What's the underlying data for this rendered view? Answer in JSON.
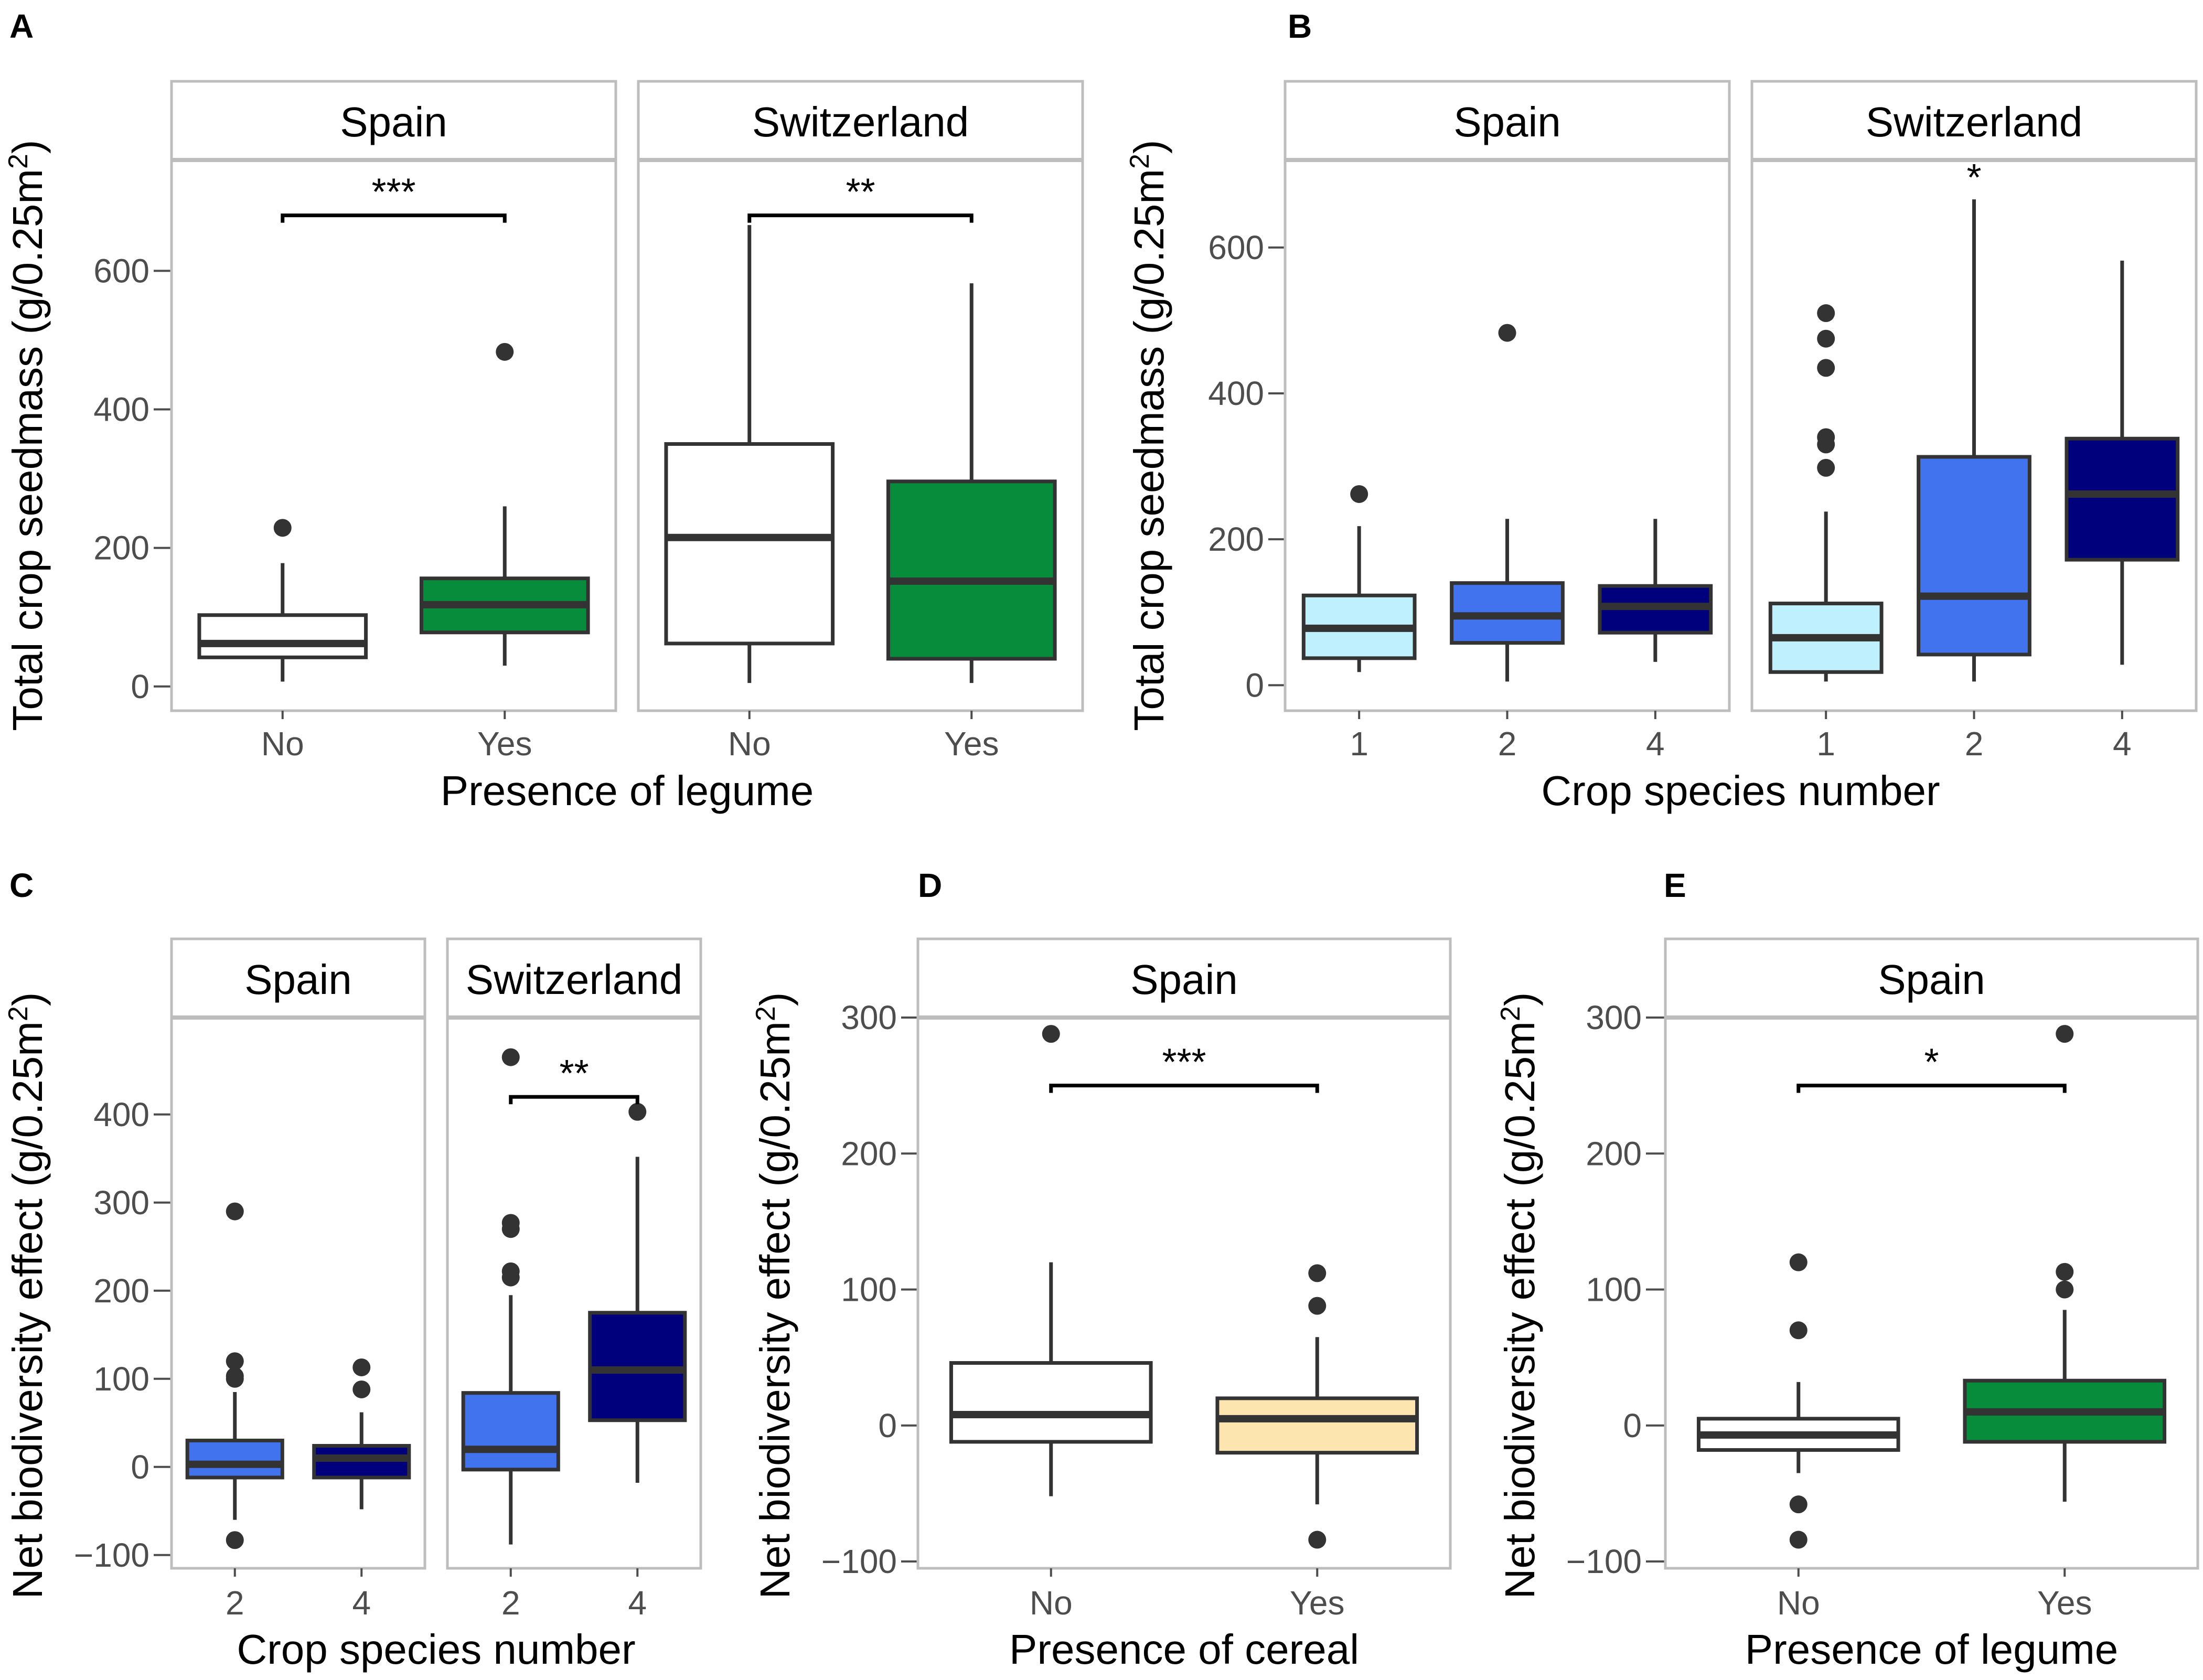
{
  "figure": {
    "background": "#ffffff",
    "colors": {
      "box_stroke": "#333333",
      "panel_border": "#bdbdbd",
      "strip_fill": "#ffffff",
      "tick_color": "#4d4d4d",
      "none": "#ffffff",
      "legume": "#078c3c",
      "cereal": "#fde5b0",
      "one_species": "#bff0fd",
      "two_species": "#4273ee",
      "four_species": "#00007c"
    }
  },
  "chart_data": [
    {
      "id": "A",
      "type": "boxplot",
      "panel_label": "A",
      "xlabel": "Presence of legume",
      "ylabel": "Total crop seedmass (g/0.25m",
      "ylabel_sup": "2",
      "ylabel_end": ")",
      "ylim": [
        -35,
        760
      ],
      "yticks": [
        0,
        200,
        400,
        600
      ],
      "facets": [
        {
          "title": "Spain",
          "categories": [
            "No",
            "Yes"
          ],
          "boxes": [
            {
              "category": "No",
              "fill": "#ffffff",
              "q1": 42,
              "median": 62,
              "q3": 103,
              "whisker_low": 7,
              "whisker_high": 178,
              "outliers": [
                229
              ]
            },
            {
              "category": "Yes",
              "fill": "#078c3c",
              "q1": 78,
              "median": 118,
              "q3": 156,
              "whisker_low": 30,
              "whisker_high": 260,
              "outliers": [
                483
              ]
            }
          ],
          "significance": [
            {
              "label": "***",
              "from": "No",
              "to": "Yes",
              "y": 680
            }
          ]
        },
        {
          "title": "Switzerland",
          "categories": [
            "No",
            "Yes"
          ],
          "boxes": [
            {
              "category": "No",
              "fill": "#ffffff",
              "q1": 62,
              "median": 215,
              "q3": 350,
              "whisker_low": 5,
              "whisker_high": 666,
              "outliers": []
            },
            {
              "category": "Yes",
              "fill": "#078c3c",
              "q1": 40,
              "median": 152,
              "q3": 296,
              "whisker_low": 5,
              "whisker_high": 582,
              "outliers": []
            }
          ],
          "significance": [
            {
              "label": "**",
              "from": "No",
              "to": "Yes",
              "y": 680
            }
          ]
        }
      ]
    },
    {
      "id": "B",
      "type": "boxplot",
      "panel_label": "B",
      "xlabel": "Crop species number",
      "ylabel": "Total crop seedmass (g/0.25m",
      "ylabel_sup": "2",
      "ylabel_end": ")",
      "ylim": [
        -35,
        720
      ],
      "yticks": [
        0,
        200,
        400,
        600
      ],
      "facets": [
        {
          "title": "Spain",
          "categories": [
            "1",
            "2",
            "4"
          ],
          "boxes": [
            {
              "category": "1",
              "fill": "#bff0fd",
              "q1": 37,
              "median": 78,
              "q3": 123,
              "whisker_low": 18,
              "whisker_high": 218,
              "outliers": [
                262
              ]
            },
            {
              "category": "2",
              "fill": "#4273ee",
              "q1": 58,
              "median": 95,
              "q3": 140,
              "whisker_low": 5,
              "whisker_high": 228,
              "outliers": [
                483
              ]
            },
            {
              "category": "4",
              "fill": "#00007c",
              "q1": 72,
              "median": 108,
              "q3": 136,
              "whisker_low": 32,
              "whisker_high": 228,
              "outliers": []
            }
          ],
          "significance": []
        },
        {
          "title": "Switzerland",
          "categories": [
            "1",
            "2",
            "4"
          ],
          "boxes": [
            {
              "category": "1",
              "fill": "#bff0fd",
              "q1": 18,
              "median": 65,
              "q3": 112,
              "whisker_low": 5,
              "whisker_high": 238,
              "outliers": [
                298,
                330,
                340,
                435,
                475,
                510
              ]
            },
            {
              "category": "2",
              "fill": "#4273ee",
              "q1": 42,
              "median": 122,
              "q3": 313,
              "whisker_low": 5,
              "whisker_high": 666,
              "outliers": []
            },
            {
              "category": "4",
              "fill": "#00007c",
              "q1": 172,
              "median": 262,
              "q3": 338,
              "whisker_low": 28,
              "whisker_high": 582,
              "outliers": []
            }
          ],
          "significance": [
            {
              "label": "*",
              "at": "2",
              "y": 700
            }
          ]
        }
      ]
    },
    {
      "id": "C",
      "type": "boxplot",
      "panel_label": "C",
      "xlabel": "Crop species number",
      "ylabel": "Net biodiversity effect (g/0.25m",
      "ylabel_sup": "2",
      "ylabel_end": ")",
      "ylim": [
        -115,
        510
      ],
      "yticks": [
        -100,
        0,
        100,
        200,
        300,
        400
      ],
      "ytick_labels": [
        "−100",
        "0",
        "100",
        "200",
        "300",
        "400"
      ],
      "facets": [
        {
          "title": "Spain",
          "categories": [
            "2",
            "4"
          ],
          "boxes": [
            {
              "category": "2",
              "fill": "#4273ee",
              "q1": -12,
              "median": 3,
              "q3": 30,
              "whisker_low": -60,
              "whisker_high": 85,
              "outliers": [
                -83,
                100,
                103,
                120,
                290
              ]
            },
            {
              "category": "4",
              "fill": "#00007c",
              "q1": -12,
              "median": 10,
              "q3": 24,
              "whisker_low": -48,
              "whisker_high": 62,
              "outliers": [
                88,
                113
              ]
            }
          ],
          "significance": []
        },
        {
          "title": "Switzerland",
          "categories": [
            "2",
            "4"
          ],
          "boxes": [
            {
              "category": "2",
              "fill": "#4273ee",
              "q1": -3,
              "median": 20,
              "q3": 84,
              "whisker_low": -88,
              "whisker_high": 195,
              "outliers": [
                215,
                222,
                270,
                277,
                465
              ]
            },
            {
              "category": "4",
              "fill": "#00007c",
              "q1": 53,
              "median": 110,
              "q3": 175,
              "whisker_low": -18,
              "whisker_high": 352,
              "outliers": [
                403
              ]
            }
          ],
          "significance": [
            {
              "label": "**",
              "from": "2",
              "to": "4",
              "y": 420
            }
          ]
        }
      ]
    },
    {
      "id": "D",
      "type": "boxplot",
      "panel_label": "D",
      "xlabel": "Presence of cereal",
      "ylabel": "Net biodiversity effect (g/0.25m",
      "ylabel_sup": "2",
      "ylabel_end": ")",
      "ylim": [
        -105,
        300
      ],
      "yticks": [
        -100,
        0,
        100,
        200,
        300
      ],
      "ytick_labels": [
        "−100",
        "0",
        "100",
        "200",
        "300"
      ],
      "facets": [
        {
          "title": "Spain",
          "categories": [
            "No",
            "Yes"
          ],
          "boxes": [
            {
              "category": "No",
              "fill": "#ffffff",
              "q1": -12,
              "median": 8,
              "q3": 46,
              "whisker_low": -52,
              "whisker_high": 120,
              "outliers": [
                288
              ]
            },
            {
              "category": "Yes",
              "fill": "#fde5b0",
              "q1": -20,
              "median": 5,
              "q3": 20,
              "whisker_low": -58,
              "whisker_high": 65,
              "outliers": [
                -84,
                88,
                112
              ]
            }
          ],
          "significance": [
            {
              "label": "***",
              "from": "No",
              "to": "Yes",
              "y": 250
            }
          ]
        }
      ]
    },
    {
      "id": "E",
      "type": "boxplot",
      "panel_label": "E",
      "xlabel": "Presence of legume",
      "ylabel": "Net biodiversity effect (g/0.25m",
      "ylabel_sup": "2",
      "ylabel_end": ")",
      "ylim": [
        -105,
        300
      ],
      "yticks": [
        -100,
        0,
        100,
        200,
        300
      ],
      "ytick_labels": [
        "−100",
        "0",
        "100",
        "200",
        "300"
      ],
      "facets": [
        {
          "title": "Spain",
          "categories": [
            "No",
            "Yes"
          ],
          "boxes": [
            {
              "category": "No",
              "fill": "#ffffff",
              "q1": -18,
              "median": -7,
              "q3": 5,
              "whisker_low": -35,
              "whisker_high": 32,
              "outliers": [
                -84,
                -58,
                70,
                120
              ]
            },
            {
              "category": "Yes",
              "fill": "#078c3c",
              "q1": -12,
              "median": 10,
              "q3": 33,
              "whisker_low": -56,
              "whisker_high": 85,
              "outliers": [
                100,
                113,
                288
              ]
            }
          ],
          "significance": [
            {
              "label": "*",
              "from": "No",
              "to": "Yes",
              "y": 250
            }
          ]
        }
      ]
    }
  ]
}
